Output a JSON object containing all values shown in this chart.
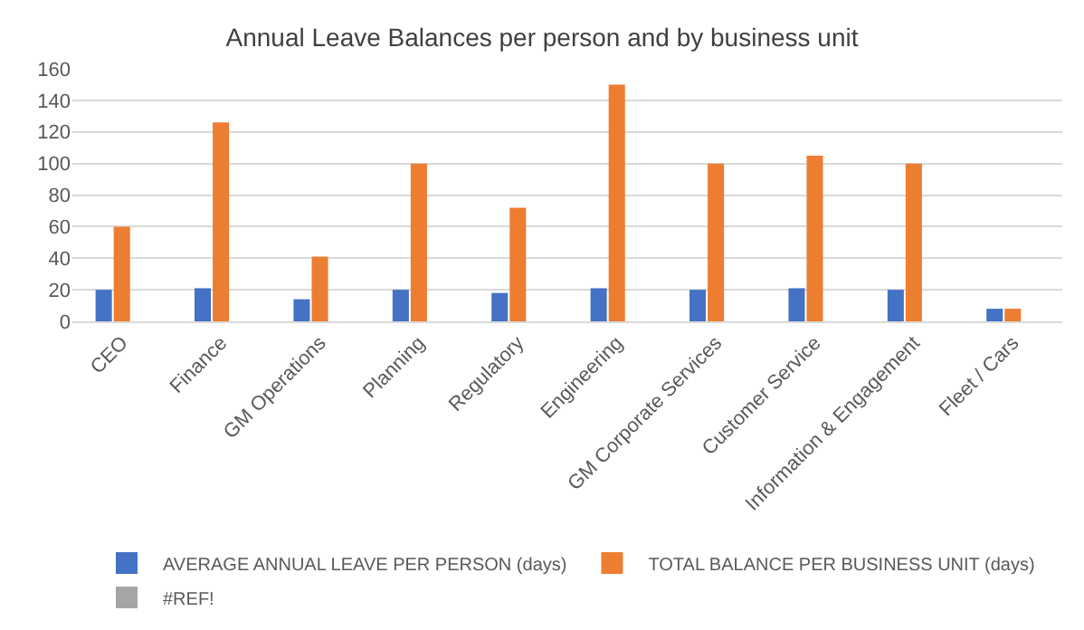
{
  "chart_data": {
    "type": "bar",
    "title": "Annual Leave Balances per person and by business unit",
    "categories": [
      "CEO",
      "Finance",
      "GM Operations",
      "Planning",
      "Regulatory",
      "Engineering",
      "GM Corporate Services",
      "Customer Service",
      "Information & Engagement",
      "Fleet / Cars"
    ],
    "series": [
      {
        "name": "AVERAGE ANNUAL LEAVE PER PERSON (days)",
        "color": "#4472c4",
        "values": [
          20,
          21,
          14,
          20,
          18,
          21,
          20,
          21,
          20,
          8
        ]
      },
      {
        "name": "TOTAL BALANCE PER BUSINESS UNIT (days)",
        "color": "#ed7d31",
        "values": [
          60,
          126,
          41,
          100,
          72,
          150,
          100,
          105,
          100,
          8
        ]
      },
      {
        "name": "#REF!",
        "color": "#a5a5a5",
        "values": [
          null,
          null,
          null,
          null,
          null,
          null,
          null,
          null,
          null,
          null
        ]
      }
    ],
    "ylim": [
      0,
      160
    ],
    "yticks": [
      0,
      20,
      40,
      60,
      80,
      100,
      120,
      140,
      160
    ],
    "grid": "y",
    "legend": "bottom"
  }
}
